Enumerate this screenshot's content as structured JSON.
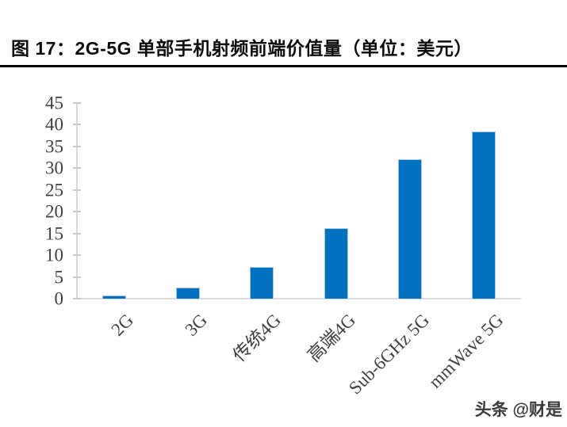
{
  "title": {
    "text": "图 17：2G-5G 单部手机射频前端价值量（单位：美元）"
  },
  "chart_data": {
    "type": "bar",
    "title": "图 17：2G-5G 单部手机射频前端价值量（单位：美元）",
    "unit_label": "美元",
    "categories": [
      "2G",
      "3G",
      "传统4G",
      "高端4G",
      "Sub-6GHz 5G",
      "mmWave 5G"
    ],
    "values": [
      0.7,
      2.5,
      7.2,
      16.3,
      32.0,
      38.5
    ],
    "xlabel": "",
    "ylabel": "",
    "ylim": [
      0,
      45
    ],
    "yticks": [
      0,
      5,
      10,
      15,
      20,
      25,
      30,
      35,
      40,
      45
    ],
    "grid": false,
    "legend": "none",
    "bar_color": "#0070c0",
    "bar_border_color": "#a6c9e8",
    "axis_color": "#d9d9d9",
    "tick_label_color": "#404040",
    "title_color": "#0d0d0d"
  },
  "watermark": {
    "text": "头条 @财是"
  }
}
